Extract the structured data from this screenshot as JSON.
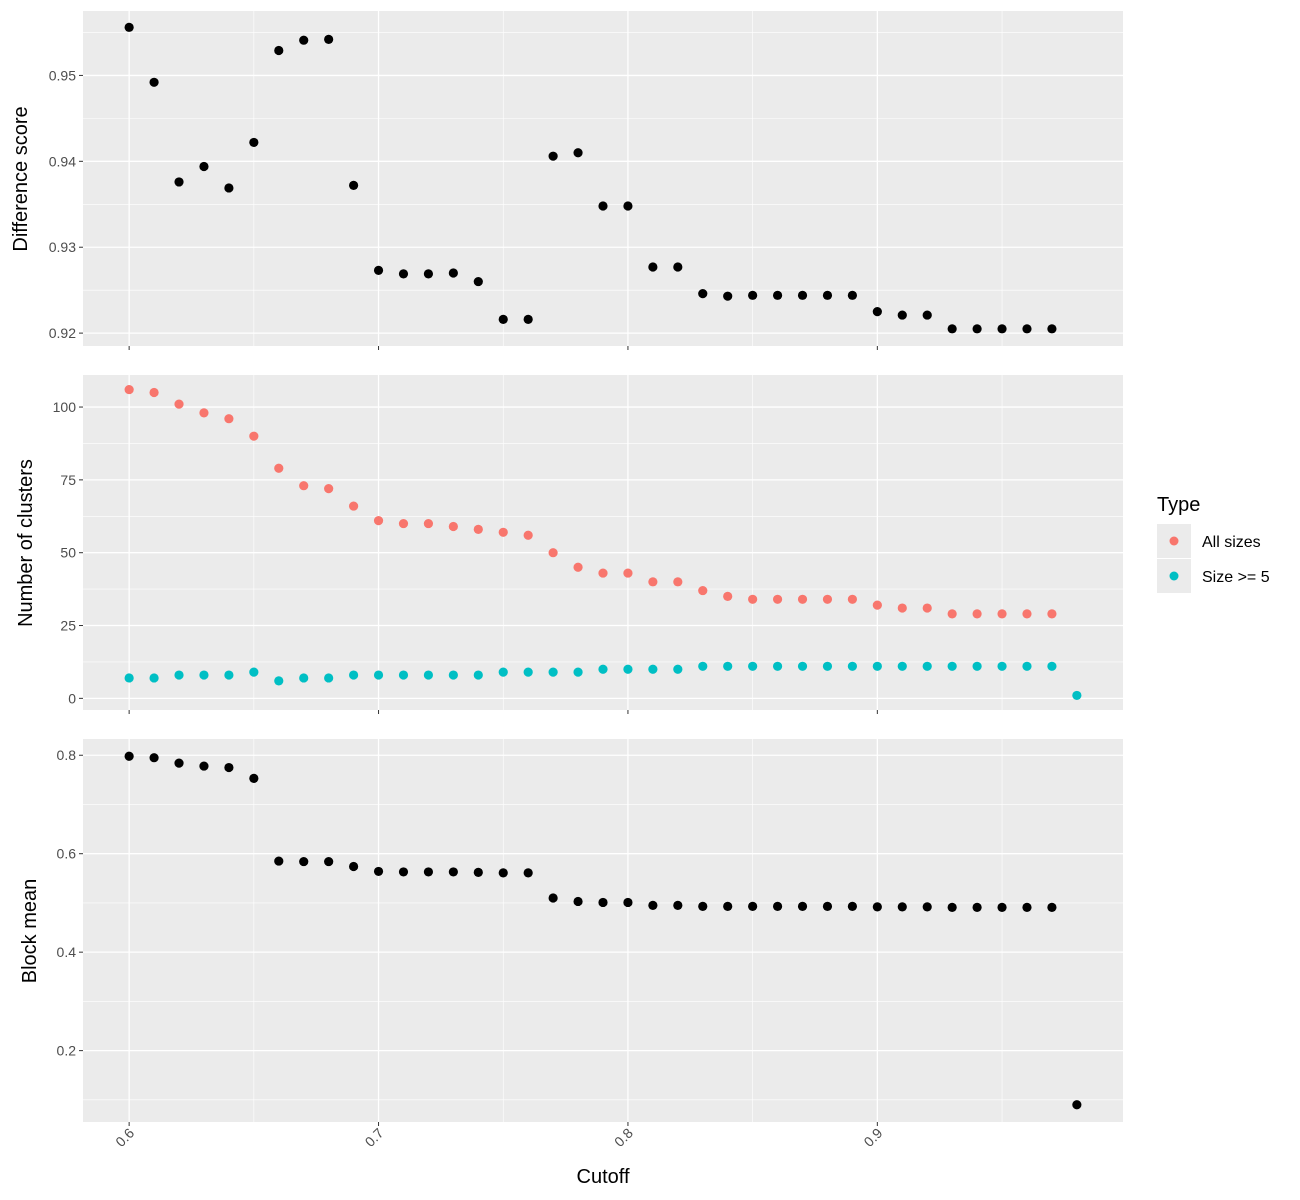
{
  "chart_data": [
    {
      "type": "scatter",
      "panel": "top",
      "ylabel": "Difference score",
      "ylim": [
        0.9185,
        0.9575
      ],
      "yticks": [
        "0.92",
        "0.93",
        "0.94",
        "0.95"
      ],
      "series": [
        {
          "points": [
            [
              0.6,
              0.9556
            ],
            [
              0.61,
              0.9492
            ],
            [
              0.62,
              0.9376
            ],
            [
              0.63,
              0.9394
            ],
            [
              0.64,
              0.9369
            ],
            [
              0.65,
              0.9422
            ],
            [
              0.66,
              0.9529
            ],
            [
              0.67,
              0.9541
            ],
            [
              0.68,
              0.9542
            ],
            [
              0.69,
              0.9372
            ],
            [
              0.7,
              0.9273
            ],
            [
              0.71,
              0.9269
            ],
            [
              0.72,
              0.9269
            ],
            [
              0.73,
              0.927
            ],
            [
              0.74,
              0.926
            ],
            [
              0.75,
              0.9216
            ],
            [
              0.76,
              0.9216
            ],
            [
              0.77,
              0.9406
            ],
            [
              0.78,
              0.941
            ],
            [
              0.79,
              0.9348
            ],
            [
              0.8,
              0.9348
            ],
            [
              0.81,
              0.9277
            ],
            [
              0.82,
              0.9277
            ],
            [
              0.83,
              0.9246
            ],
            [
              0.84,
              0.9243
            ],
            [
              0.85,
              0.9244
            ],
            [
              0.86,
              0.9244
            ],
            [
              0.87,
              0.9244
            ],
            [
              0.88,
              0.9244
            ],
            [
              0.89,
              0.9244
            ],
            [
              0.9,
              0.9225
            ],
            [
              0.91,
              0.9221
            ],
            [
              0.92,
              0.9221
            ],
            [
              0.93,
              0.9205
            ],
            [
              0.94,
              0.9205
            ],
            [
              0.95,
              0.9205
            ],
            [
              0.96,
              0.9205
            ],
            [
              0.97,
              0.9205
            ]
          ]
        }
      ]
    },
    {
      "type": "scatter",
      "panel": "middle",
      "ylabel": "Number of clusters",
      "ylim": [
        -4,
        111
      ],
      "yticks": [
        "0",
        "25",
        "50",
        "75",
        "100"
      ],
      "legend": {
        "title": "Type",
        "position": "right"
      },
      "series": [
        {
          "name": "All sizes",
          "color": "#F8766D",
          "points": [
            [
              0.6,
              106
            ],
            [
              0.61,
              105
            ],
            [
              0.62,
              101
            ],
            [
              0.63,
              98
            ],
            [
              0.64,
              96
            ],
            [
              0.65,
              90
            ],
            [
              0.66,
              79
            ],
            [
              0.67,
              73
            ],
            [
              0.68,
              72
            ],
            [
              0.69,
              66
            ],
            [
              0.7,
              61
            ],
            [
              0.71,
              60
            ],
            [
              0.72,
              60
            ],
            [
              0.73,
              59
            ],
            [
              0.74,
              58
            ],
            [
              0.75,
              57
            ],
            [
              0.76,
              56
            ],
            [
              0.77,
              50
            ],
            [
              0.78,
              45
            ],
            [
              0.79,
              43
            ],
            [
              0.8,
              43
            ],
            [
              0.81,
              40
            ],
            [
              0.82,
              40
            ],
            [
              0.83,
              37
            ],
            [
              0.84,
              35
            ],
            [
              0.85,
              34
            ],
            [
              0.86,
              34
            ],
            [
              0.87,
              34
            ],
            [
              0.88,
              34
            ],
            [
              0.89,
              34
            ],
            [
              0.9,
              32
            ],
            [
              0.91,
              31
            ],
            [
              0.92,
              31
            ],
            [
              0.93,
              29
            ],
            [
              0.94,
              29
            ],
            [
              0.95,
              29
            ],
            [
              0.96,
              29
            ],
            [
              0.97,
              29
            ]
          ]
        },
        {
          "name": "Size >= 5",
          "color": "#00BFC4",
          "points": [
            [
              0.6,
              7
            ],
            [
              0.61,
              7
            ],
            [
              0.62,
              8
            ],
            [
              0.63,
              8
            ],
            [
              0.64,
              8
            ],
            [
              0.65,
              9
            ],
            [
              0.66,
              6
            ],
            [
              0.67,
              7
            ],
            [
              0.68,
              7
            ],
            [
              0.69,
              8
            ],
            [
              0.7,
              8
            ],
            [
              0.71,
              8
            ],
            [
              0.72,
              8
            ],
            [
              0.73,
              8
            ],
            [
              0.74,
              8
            ],
            [
              0.75,
              9
            ],
            [
              0.76,
              9
            ],
            [
              0.77,
              9
            ],
            [
              0.78,
              9
            ],
            [
              0.79,
              10
            ],
            [
              0.8,
              10
            ],
            [
              0.81,
              10
            ],
            [
              0.82,
              10
            ],
            [
              0.83,
              11
            ],
            [
              0.84,
              11
            ],
            [
              0.85,
              11
            ],
            [
              0.86,
              11
            ],
            [
              0.87,
              11
            ],
            [
              0.88,
              11
            ],
            [
              0.89,
              11
            ],
            [
              0.9,
              11
            ],
            [
              0.91,
              11
            ],
            [
              0.92,
              11
            ],
            [
              0.93,
              11
            ],
            [
              0.94,
              11
            ],
            [
              0.95,
              11
            ],
            [
              0.96,
              11
            ],
            [
              0.97,
              11
            ],
            [
              0.98,
              1
            ]
          ]
        }
      ]
    },
    {
      "type": "scatter",
      "panel": "bottom",
      "ylabel": "Block mean",
      "ylim": [
        0.055,
        0.833
      ],
      "yticks": [
        "0.2",
        "0.4",
        "0.6",
        "0.8"
      ],
      "series": [
        {
          "points": [
            [
              0.6,
              0.798
            ],
            [
              0.61,
              0.795
            ],
            [
              0.62,
              0.784
            ],
            [
              0.63,
              0.778
            ],
            [
              0.64,
              0.775
            ],
            [
              0.65,
              0.753
            ],
            [
              0.66,
              0.585
            ],
            [
              0.67,
              0.584
            ],
            [
              0.68,
              0.584
            ],
            [
              0.69,
              0.574
            ],
            [
              0.7,
              0.564
            ],
            [
              0.71,
              0.563
            ],
            [
              0.72,
              0.563
            ],
            [
              0.73,
              0.563
            ],
            [
              0.74,
              0.562
            ],
            [
              0.75,
              0.561
            ],
            [
              0.76,
              0.561
            ],
            [
              0.77,
              0.51
            ],
            [
              0.78,
              0.503
            ],
            [
              0.79,
              0.501
            ],
            [
              0.8,
              0.501
            ],
            [
              0.81,
              0.495
            ],
            [
              0.82,
              0.495
            ],
            [
              0.83,
              0.493
            ],
            [
              0.84,
              0.493
            ],
            [
              0.85,
              0.493
            ],
            [
              0.86,
              0.493
            ],
            [
              0.87,
              0.493
            ],
            [
              0.88,
              0.493
            ],
            [
              0.89,
              0.493
            ],
            [
              0.9,
              0.492
            ],
            [
              0.91,
              0.492
            ],
            [
              0.92,
              0.492
            ],
            [
              0.93,
              0.491
            ],
            [
              0.94,
              0.491
            ],
            [
              0.95,
              0.491
            ],
            [
              0.96,
              0.491
            ],
            [
              0.97,
              0.491
            ],
            [
              0.98,
              0.09
            ]
          ]
        }
      ]
    }
  ],
  "x_axis": {
    "label": "Cutoff",
    "xlim": [
      0.5815,
      0.9985
    ],
    "ticks": [
      "0.6",
      "0.7",
      "0.8",
      "0.9"
    ]
  },
  "colors": {
    "panel_bg": "#EBEBEB",
    "grid": "#FFFFFF",
    "point_default": "#000000"
  }
}
